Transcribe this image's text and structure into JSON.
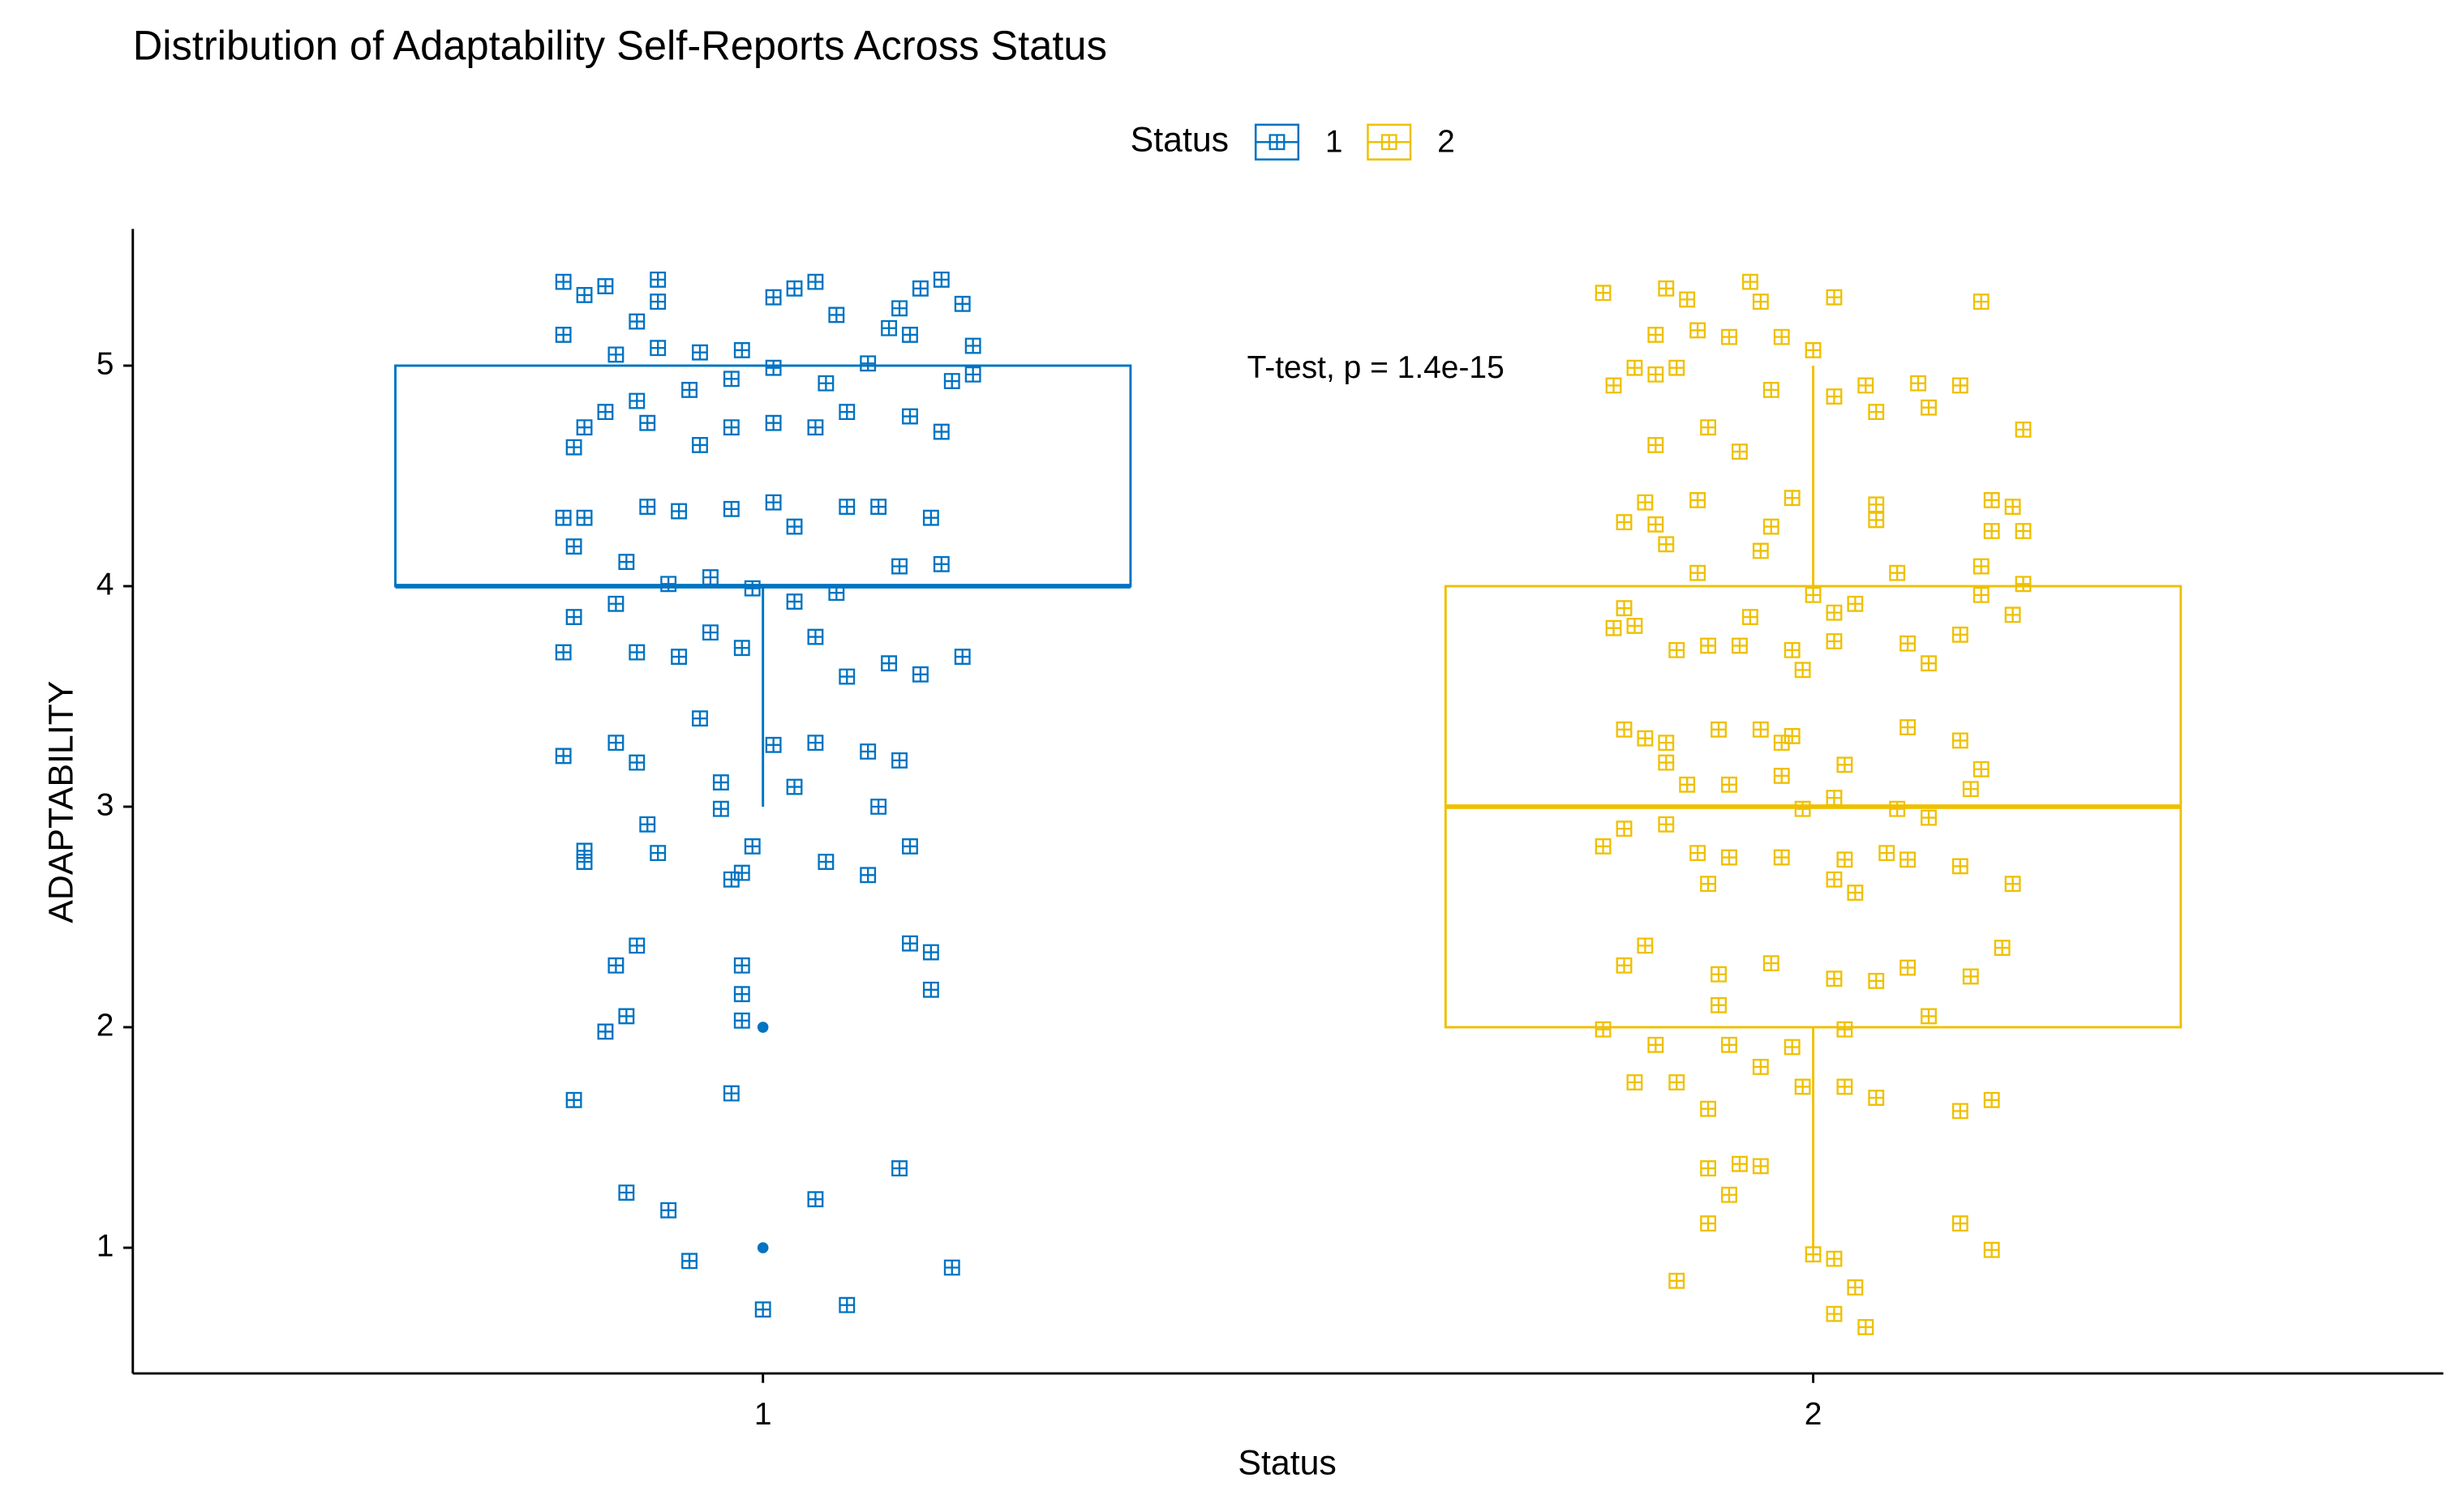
{
  "chart_data": {
    "type": "box",
    "title": "Distribution of Adaptability Self-Reports Across Status",
    "legend_title": "Status",
    "x_label": "Status",
    "y_label": "ADAPTABILITY",
    "annotation": "T-test, p = 1.4e-15",
    "categories": [
      "1",
      "2"
    ],
    "xlim": [
      0.4,
      2.6
    ],
    "ylim": [
      0.43,
      5.62
    ],
    "yticks": [
      1,
      2,
      3,
      4,
      5
    ],
    "grid": false,
    "legend": "top",
    "series": [
      {
        "name": "1",
        "color": "#0073C2",
        "box": {
          "low": 3,
          "q1": 4,
          "median": 4,
          "q3": 5,
          "high": 5,
          "outliers": [
            2,
            1
          ]
        },
        "points": {
          "x": [
            0.81,
            0.83,
            0.85,
            0.9,
            0.9,
            0.81,
            0.86,
            0.88,
            0.9,
            0.94,
            0.98,
            1.01,
            1.03,
            1.05,
            1.07,
            1.12,
            1.13,
            1.15,
            1.17,
            1.19,
            1.2,
            1.2,
            1.18,
            1.14,
            1.1,
            1.06,
            1.01,
            0.97,
            0.93,
            0.88,
            0.85,
            0.82,
            0.83,
            0.89,
            0.94,
            0.97,
            1.01,
            1.05,
            1.08,
            1.14,
            1.17,
            0.81,
            0.83,
            0.89,
            0.92,
            0.97,
            1.01,
            1.03,
            1.08,
            1.11,
            1.16,
            0.82,
            0.87,
            0.91,
            0.95,
            0.99,
            1.03,
            1.07,
            1.13,
            1.17,
            0.81,
            0.82,
            0.86,
            0.88,
            0.92,
            0.95,
            0.98,
            1.05,
            1.08,
            1.12,
            1.15,
            1.19,
            0.81,
            0.86,
            0.88,
            0.94,
            0.96,
            1.01,
            1.05,
            1.1,
            1.13,
            1.11,
            0.96,
            1.03,
            0.99,
            0.89,
            0.83,
            0.83,
            0.9,
            0.97,
            0.98,
            1.06,
            1.1,
            1.14,
            0.88,
            0.86,
            0.98,
            1.14,
            1.16,
            1.16,
            0.98,
            0.87,
            0.85,
            0.98,
            0.82,
            0.97,
            0.87,
            0.91,
            1.05,
            1.13,
            0.93,
            1.18,
            1.0,
            1.08
          ],
          "y": [
            5.38,
            5.32,
            5.36,
            5.39,
            5.29,
            5.14,
            5.05,
            5.2,
            5.08,
            5.06,
            5.07,
            5.31,
            5.35,
            5.38,
            5.23,
            5.17,
            5.26,
            5.35,
            5.39,
            5.28,
            5.09,
            4.96,
            4.93,
            5.14,
            5.01,
            4.92,
            4.99,
            4.94,
            4.89,
            4.84,
            4.79,
            4.63,
            4.72,
            4.74,
            4.64,
            4.72,
            4.74,
            4.72,
            4.79,
            4.77,
            4.7,
            4.31,
            4.31,
            4.36,
            4.34,
            4.35,
            4.38,
            4.27,
            4.36,
            4.36,
            4.31,
            4.18,
            4.11,
            4.01,
            4.04,
            3.99,
            3.93,
            3.97,
            4.09,
            4.1,
            3.7,
            3.86,
            3.92,
            3.7,
            3.68,
            3.79,
            3.72,
            3.77,
            3.59,
            3.65,
            3.6,
            3.68,
            3.23,
            3.29,
            3.2,
            3.4,
            3.11,
            3.28,
            3.29,
            3.25,
            3.21,
            3.0,
            2.99,
            3.09,
            2.82,
            2.92,
            2.8,
            2.75,
            2.79,
            2.67,
            2.7,
            2.75,
            2.69,
            2.82,
            2.37,
            2.28,
            2.28,
            2.38,
            2.34,
            2.17,
            2.15,
            2.05,
            1.98,
            2.03,
            1.67,
            1.7,
            1.25,
            1.17,
            1.22,
            1.36,
            0.94,
            0.91,
            0.72,
            0.74
          ]
        }
      },
      {
        "name": "2",
        "color": "#EFC000",
        "box": {
          "low": 1,
          "q1": 2,
          "median": 3,
          "q3": 4,
          "high": 5,
          "outliers": []
        },
        "points": {
          "x": [
            1.8,
            1.86,
            1.88,
            1.94,
            1.95,
            2.02,
            2.16,
            1.85,
            1.89,
            1.81,
            1.83,
            1.85,
            1.87,
            1.92,
            1.97,
            2.0,
            1.96,
            2.02,
            2.05,
            2.1,
            2.14,
            2.06,
            2.11,
            1.9,
            2.2,
            1.85,
            1.93,
            1.84,
            1.89,
            1.82,
            1.85,
            1.86,
            1.98,
            1.96,
            1.95,
            2.06,
            2.06,
            2.17,
            2.19,
            2.17,
            2.2,
            1.89,
            2.08,
            2.16,
            2.2,
            2.16,
            1.82,
            1.81,
            1.83,
            1.87,
            1.9,
            1.94,
            1.93,
            1.98,
            2.0,
            2.02,
            2.04,
            2.02,
            1.99,
            2.09,
            2.11,
            2.14,
            2.19,
            1.82,
            1.84,
            1.86,
            1.86,
            1.91,
            1.95,
            1.97,
            1.98,
            2.03,
            2.09,
            2.14,
            1.88,
            1.92,
            1.97,
            1.99,
            2.02,
            2.08,
            2.11,
            2.15,
            2.16,
            1.8,
            1.82,
            1.86,
            1.89,
            1.92,
            1.97,
            2.03,
            2.07,
            2.09,
            2.14,
            2.19,
            1.9,
            2.02,
            2.04,
            1.82,
            1.84,
            1.91,
            1.96,
            2.02,
            2.06,
            2.09,
            2.15,
            2.18,
            1.91,
            2.03,
            2.11,
            1.8,
            1.85,
            1.92,
            1.98,
            1.87,
            1.83,
            1.95,
            1.99,
            2.03,
            2.06,
            2.14,
            2.17,
            1.9,
            1.9,
            1.93,
            1.95,
            1.92,
            1.9,
            2.14,
            2.17,
            2.0,
            2.02,
            2.04,
            1.87,
            2.02,
            2.05
          ],
          "y": [
            5.33,
            5.35,
            5.3,
            5.38,
            5.29,
            5.31,
            5.29,
            5.14,
            5.16,
            4.91,
            4.99,
            4.96,
            4.99,
            5.13,
            5.13,
            5.07,
            4.89,
            4.86,
            4.91,
            4.92,
            4.91,
            4.79,
            4.81,
            4.72,
            4.71,
            4.64,
            4.61,
            4.38,
            4.39,
            4.29,
            4.28,
            4.19,
            4.4,
            4.27,
            4.16,
            4.37,
            4.3,
            4.39,
            4.36,
            4.25,
            4.25,
            4.06,
            4.06,
            4.09,
            4.01,
            3.96,
            3.9,
            3.81,
            3.82,
            3.71,
            3.73,
            3.86,
            3.73,
            3.71,
            3.96,
            3.88,
            3.92,
            3.75,
            3.62,
            3.74,
            3.65,
            3.78,
            3.87,
            3.35,
            3.31,
            3.29,
            3.2,
            3.35,
            3.35,
            3.29,
            3.32,
            3.19,
            3.36,
            3.3,
            3.1,
            3.1,
            3.14,
            2.99,
            3.04,
            2.99,
            2.95,
            3.08,
            3.17,
            2.82,
            2.9,
            2.92,
            2.79,
            2.77,
            2.77,
            2.76,
            2.79,
            2.76,
            2.73,
            2.65,
            2.65,
            2.67,
            2.61,
            2.28,
            2.37,
            2.24,
            2.29,
            2.22,
            2.21,
            2.27,
            2.23,
            2.36,
            2.1,
            1.99,
            2.05,
            1.99,
            1.92,
            1.92,
            1.91,
            1.75,
            1.75,
            1.82,
            1.73,
            1.73,
            1.68,
            1.62,
            1.67,
            1.63,
            1.36,
            1.38,
            1.37,
            1.24,
            1.11,
            1.11,
            0.99,
            0.97,
            0.95,
            0.82,
            0.85,
            0.7,
            0.64
          ]
        }
      }
    ]
  }
}
